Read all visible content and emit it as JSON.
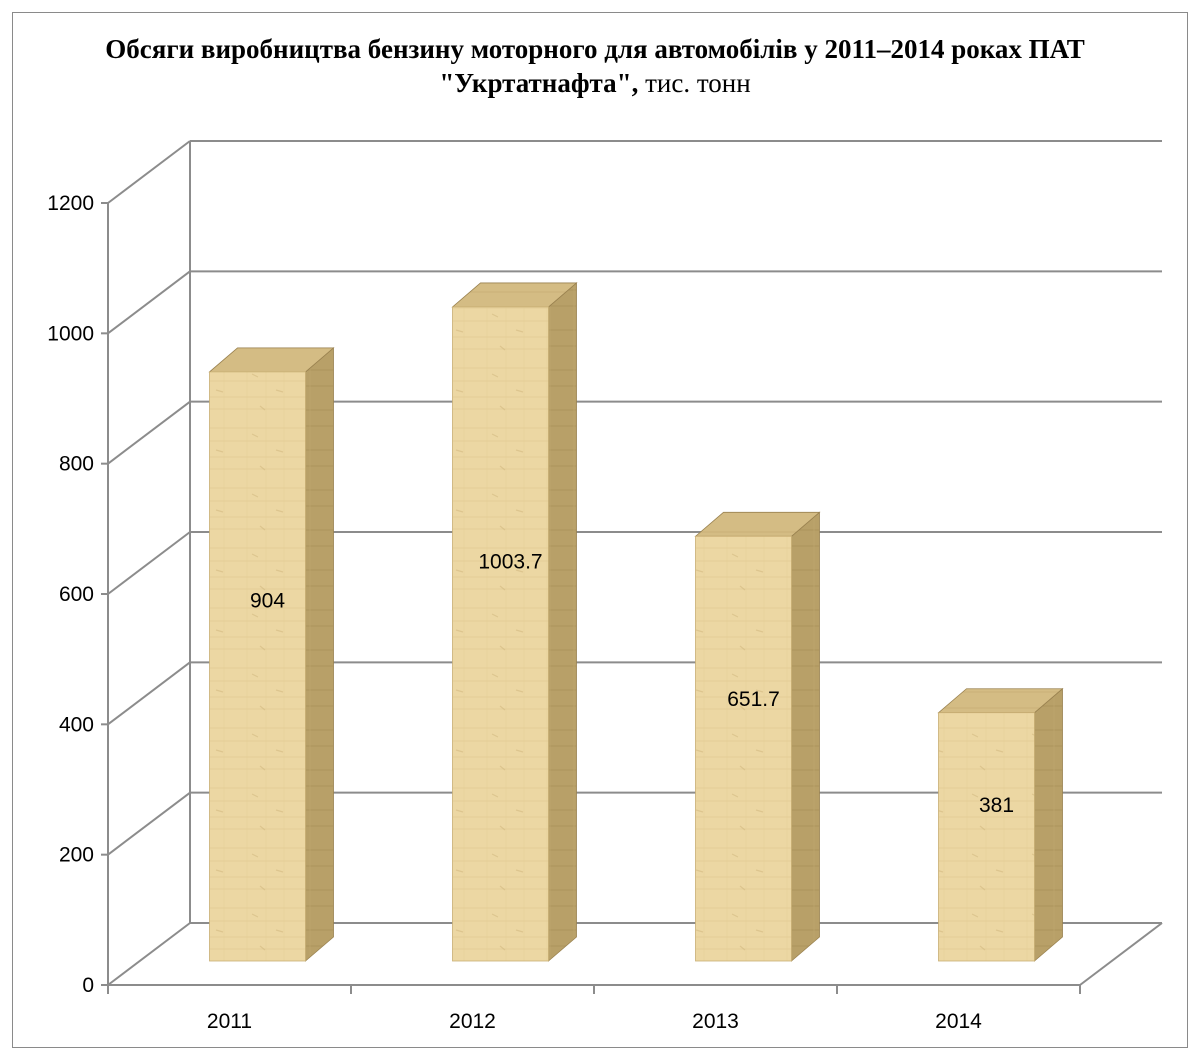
{
  "chart_data": {
    "type": "bar",
    "title_main": "Обсяги виробництва бензину моторного для автомобілів у 2011–2014 роках ПАТ \"Укртатнафта\",",
    "title_unit": " тис. тонн",
    "categories": [
      "2011",
      "2012",
      "2013",
      "2014"
    ],
    "values": [
      904,
      1003.7,
      651.7,
      381
    ],
    "data_labels": [
      "904",
      "1003.7",
      "651.7",
      "381"
    ],
    "yticks": [
      0,
      200,
      400,
      600,
      800,
      1000,
      1200
    ],
    "ylim": [
      0,
      1200
    ],
    "grid": true,
    "style": "3d-column",
    "colors": {
      "bar_front": "#ecd7a3",
      "bar_side": "#b39a63",
      "bar_top": "#d2ba80",
      "grid": "#8c8c8c"
    }
  }
}
